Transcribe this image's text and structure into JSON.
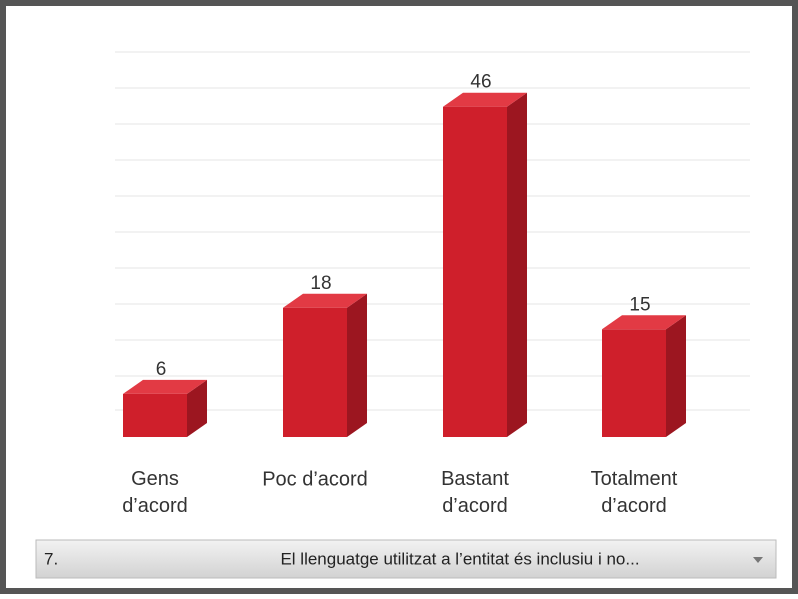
{
  "chart_data": {
    "type": "bar3d",
    "categories": [
      "Gens d’acord",
      "Poc d’acord",
      "Bastant d’acord",
      "Totalment d’acord"
    ],
    "values": [
      6,
      18,
      46,
      15
    ],
    "color": "#cf1f2b",
    "ylim": [
      0,
      50
    ]
  },
  "dropdown": {
    "number": "7.",
    "text": "El llenguatge utilitzat a l’entitat és inclusiu i no..."
  }
}
